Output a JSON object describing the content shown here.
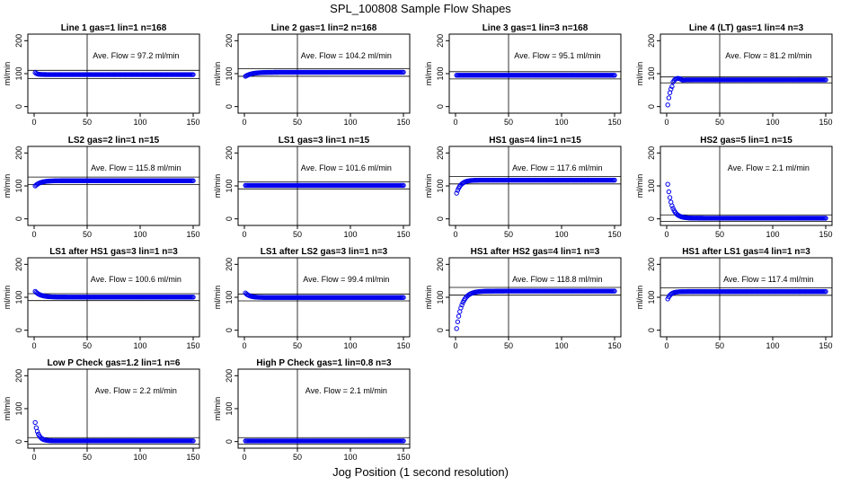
{
  "figure": {
    "title": "SPL_100808  Sample Flow Shapes",
    "xlabel": "Jog Position (1 second resolution)"
  },
  "colors": {
    "points": "#0000ee",
    "axes": "#000000"
  },
  "chart_data": [
    {
      "type": "scatter",
      "title": "Line 1 gas=1 lin=1 n=168",
      "ylabel": "ml/min",
      "annotation": "Ave. Flow =  97.2  ml/min",
      "xlim": [
        0,
        150
      ],
      "ylim": [
        -20,
        220
      ],
      "xticks": [
        0,
        50,
        100,
        150
      ],
      "yticks": [
        0,
        100,
        200
      ],
      "hlines": [
        110,
        85
      ],
      "vline": 50,
      "curve": {
        "shape": "flat",
        "start": 107,
        "plateau": 97.2,
        "tau": 2
      }
    },
    {
      "type": "scatter",
      "title": "Line 2 gas=1 lin=2 n=168",
      "ylabel": "ml/min",
      "annotation": "Ave. Flow =  104.2  ml/min",
      "xlim": [
        0,
        150
      ],
      "ylim": [
        -20,
        220
      ],
      "xticks": [
        0,
        50,
        100,
        150
      ],
      "yticks": [
        0,
        100,
        200
      ],
      "hlines": [
        115,
        92
      ],
      "vline": 50,
      "curve": {
        "shape": "rise",
        "start": 92,
        "plateau": 104.2,
        "tau": 6
      }
    },
    {
      "type": "scatter",
      "title": "Line 3 gas=1 lin=3 n=168",
      "ylabel": "ml/min",
      "annotation": "Ave. Flow =  95.1  ml/min",
      "xlim": [
        0,
        150
      ],
      "ylim": [
        -20,
        220
      ],
      "xticks": [
        0,
        50,
        100,
        150
      ],
      "yticks": [
        0,
        100,
        200
      ],
      "hlines": [
        106,
        84
      ],
      "vline": 50,
      "curve": {
        "shape": "flat",
        "start": 95.1,
        "plateau": 95.1,
        "tau": 1
      }
    },
    {
      "type": "scatter",
      "title": "Line 4 (LT) gas=1 lin=4 n=3",
      "ylabel": "ml/min",
      "annotation": "Ave. Flow =  81.2  ml/min",
      "xlim": [
        0,
        150
      ],
      "ylim": [
        -20,
        220
      ],
      "xticks": [
        0,
        50,
        100,
        150
      ],
      "yticks": [
        0,
        100,
        200
      ],
      "hlines": [
        90,
        72
      ],
      "vline": 50,
      "curve": {
        "shape": "overshoot",
        "start": 5,
        "plateau": 81.2,
        "peak": 90,
        "tau": 3
      }
    },
    {
      "type": "scatter",
      "title": "LS2 gas=2 lin=1 n=15",
      "ylabel": "ml/min",
      "annotation": "Ave. Flow =  115.8  ml/min",
      "xlim": [
        0,
        150
      ],
      "ylim": [
        -20,
        220
      ],
      "xticks": [
        0,
        50,
        100,
        150
      ],
      "yticks": [
        0,
        100,
        200
      ],
      "hlines": [
        127,
        104
      ],
      "vline": 50,
      "curve": {
        "shape": "rise",
        "start": 100,
        "plateau": 115.8,
        "tau": 5
      }
    },
    {
      "type": "scatter",
      "title": "LS1 gas=3 lin=1 n=15",
      "ylabel": "ml/min",
      "annotation": "Ave. Flow =  101.6  ml/min",
      "xlim": [
        0,
        150
      ],
      "ylim": [
        -20,
        220
      ],
      "xticks": [
        0,
        50,
        100,
        150
      ],
      "yticks": [
        0,
        100,
        200
      ],
      "hlines": [
        112,
        91
      ],
      "vline": 50,
      "curve": {
        "shape": "flat",
        "start": 101.6,
        "plateau": 101.6,
        "tau": 1
      }
    },
    {
      "type": "scatter",
      "title": "HS1 gas=4 lin=1 n=15",
      "ylabel": "ml/min",
      "annotation": "Ave. Flow =  117.6  ml/min",
      "xlim": [
        0,
        150
      ],
      "ylim": [
        -20,
        220
      ],
      "xticks": [
        0,
        50,
        100,
        150
      ],
      "yticks": [
        0,
        100,
        200
      ],
      "hlines": [
        129,
        106
      ],
      "vline": 50,
      "curve": {
        "shape": "rise",
        "start": 78,
        "plateau": 117.6,
        "tau": 4
      }
    },
    {
      "type": "scatter",
      "title": "HS2 gas=5 lin=1 n=15",
      "ylabel": "ml/min",
      "annotation": "Ave. Flow =  2.1  ml/min",
      "xlim": [
        0,
        150
      ],
      "ylim": [
        -20,
        220
      ],
      "xticks": [
        0,
        50,
        100,
        150
      ],
      "yticks": [
        0,
        100,
        200
      ],
      "hlines": [
        12,
        -8
      ],
      "vline": 50,
      "curve": {
        "shape": "decay",
        "start": 105,
        "plateau": 2.1,
        "tau": 4
      }
    },
    {
      "type": "scatter",
      "title": "LS1 after HS1 gas=3 lin=1 n=3",
      "ylabel": "ml/min",
      "annotation": "Ave. Flow =  100.6  ml/min",
      "xlim": [
        0,
        150
      ],
      "ylim": [
        -20,
        220
      ],
      "xticks": [
        0,
        50,
        100,
        150
      ],
      "yticks": [
        0,
        100,
        200
      ],
      "hlines": [
        111,
        90
      ],
      "vline": 50,
      "curve": {
        "shape": "decay",
        "start": 118,
        "plateau": 100.6,
        "tau": 5
      }
    },
    {
      "type": "scatter",
      "title": "LS1 after LS2 gas=3 lin=1 n=3",
      "ylabel": "ml/min",
      "annotation": "Ave. Flow =  99.4  ml/min",
      "xlim": [
        0,
        150
      ],
      "ylim": [
        -20,
        220
      ],
      "xticks": [
        0,
        50,
        100,
        150
      ],
      "yticks": [
        0,
        100,
        200
      ],
      "hlines": [
        110,
        89
      ],
      "vline": 50,
      "curve": {
        "shape": "decay",
        "start": 113,
        "plateau": 99.4,
        "tau": 4
      }
    },
    {
      "type": "scatter",
      "title": "HS1 after HS2 gas=4 lin=1 n=3",
      "ylabel": "ml/min",
      "annotation": "Ave. Flow =  118.8  ml/min",
      "xlim": [
        0,
        150
      ],
      "ylim": [
        -20,
        220
      ],
      "xticks": [
        0,
        50,
        100,
        150
      ],
      "yticks": [
        0,
        100,
        200
      ],
      "hlines": [
        130,
        107
      ],
      "vline": 50,
      "curve": {
        "shape": "rise",
        "start": 5,
        "plateau": 118.8,
        "tau": 5
      }
    },
    {
      "type": "scatter",
      "title": "HS1 after LS1 gas=4 lin=1 n=3",
      "ylabel": "ml/min",
      "annotation": "Ave. Flow =  117.4  ml/min",
      "xlim": [
        0,
        150
      ],
      "ylim": [
        -20,
        220
      ],
      "xticks": [
        0,
        50,
        100,
        150
      ],
      "yticks": [
        0,
        100,
        200
      ],
      "hlines": [
        129,
        106
      ],
      "vline": 50,
      "curve": {
        "shape": "rise",
        "start": 95,
        "plateau": 117.4,
        "tau": 3
      }
    },
    {
      "type": "scatter",
      "title": "Low P Check gas=1.2 lin=1 n=6",
      "ylabel": "ml/min",
      "annotation": "Ave. Flow =  2.2  ml/min",
      "xlim": [
        0,
        150
      ],
      "ylim": [
        -20,
        220
      ],
      "xticks": [
        0,
        50,
        100,
        150
      ],
      "yticks": [
        0,
        100,
        200
      ],
      "hlines": [
        12,
        -8
      ],
      "vline": 50,
      "curve": {
        "shape": "decay",
        "start": 58,
        "plateau": 2.2,
        "tau": 3
      }
    },
    {
      "type": "scatter",
      "title": "High P Check gas=1 lin=0.8 n=3",
      "ylabel": "ml/min",
      "annotation": "Ave. Flow =  2.1  ml/min",
      "xlim": [
        0,
        150
      ],
      "ylim": [
        -20,
        220
      ],
      "xticks": [
        0,
        50,
        100,
        150
      ],
      "yticks": [
        0,
        100,
        200
      ],
      "hlines": [
        12,
        -8
      ],
      "vline": 50,
      "curve": {
        "shape": "flat",
        "start": 2.1,
        "plateau": 2.1,
        "tau": 1
      }
    }
  ]
}
